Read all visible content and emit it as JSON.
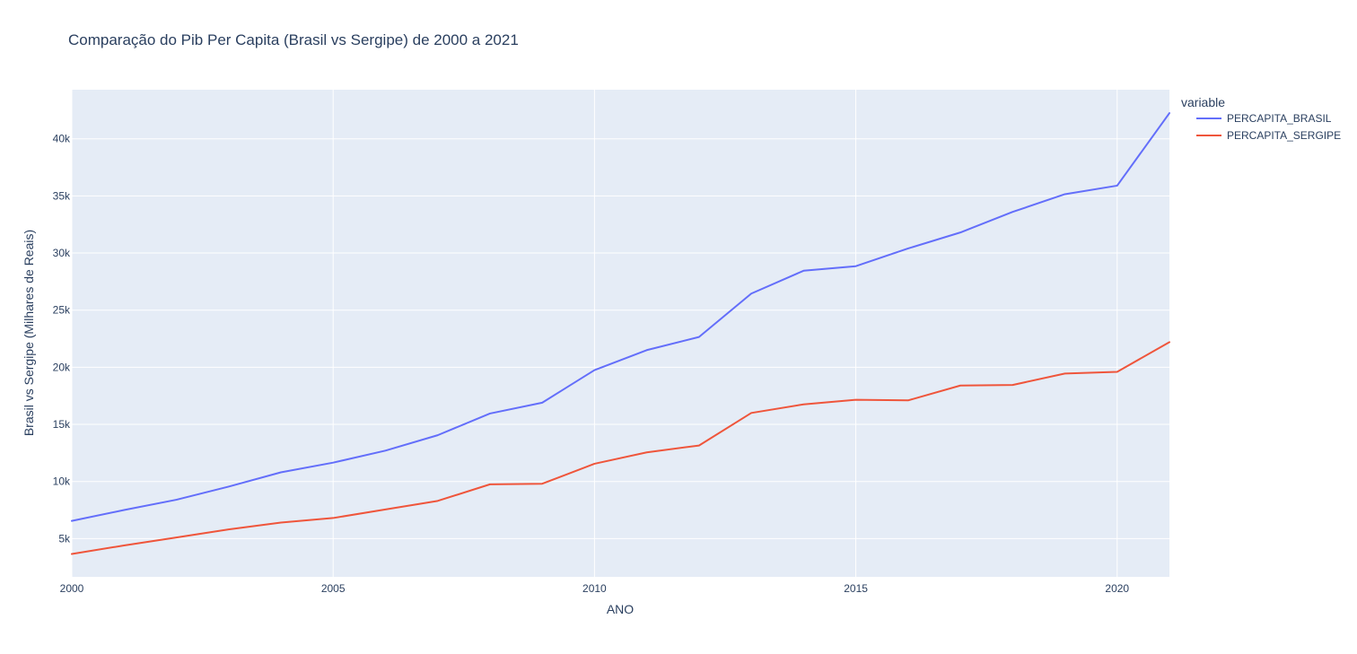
{
  "chart_data": {
    "type": "line",
    "title": "Comparação do Pib Per Capita (Brasil vs Sergipe) de 2000 a 2021",
    "xlabel": "ANO",
    "ylabel": "Brasil vs Sergipe (Milhares de Reais)",
    "x": [
      2000,
      2001,
      2002,
      2003,
      2004,
      2005,
      2006,
      2007,
      2008,
      2009,
      2010,
      2011,
      2012,
      2013,
      2014,
      2015,
      2016,
      2017,
      2018,
      2019,
      2020,
      2021
    ],
    "xlim": [
      2000,
      2021
    ],
    "ylim": [
      1650,
      44300
    ],
    "x_ticks": [
      2000,
      2005,
      2010,
      2015,
      2020
    ],
    "x_tick_labels": [
      "2000",
      "2005",
      "2010",
      "2015",
      "2020"
    ],
    "y_ticks": [
      5000,
      10000,
      15000,
      20000,
      25000,
      30000,
      35000,
      40000
    ],
    "y_tick_labels": [
      "5k",
      "10k",
      "15k",
      "20k",
      "25k",
      "30k",
      "35k",
      "40k"
    ],
    "grid": true,
    "legend_title": "variable",
    "legend_position": "top-right outside",
    "series": [
      {
        "name": "PERCAPITA_BRASIL",
        "color": "#636efa",
        "values": [
          6550,
          7500,
          8400,
          9550,
          10800,
          11650,
          12700,
          14050,
          15950,
          16900,
          19750,
          21500,
          22650,
          26450,
          28450,
          28850,
          30400,
          31800,
          33600,
          35150,
          35900,
          42250
        ]
      },
      {
        "name": "PERCAPITA_SERGIPE",
        "color": "#ef553b",
        "values": [
          3650,
          4400,
          5100,
          5800,
          6400,
          6800,
          7550,
          8300,
          9750,
          9800,
          11550,
          12550,
          13150,
          16000,
          16750,
          17150,
          17100,
          18400,
          18450,
          19450,
          19600,
          22200
        ]
      }
    ]
  },
  "colors": {
    "plot_background": "#e5ecf6",
    "grid": "#ffffff",
    "text": "#2a3f5f"
  }
}
